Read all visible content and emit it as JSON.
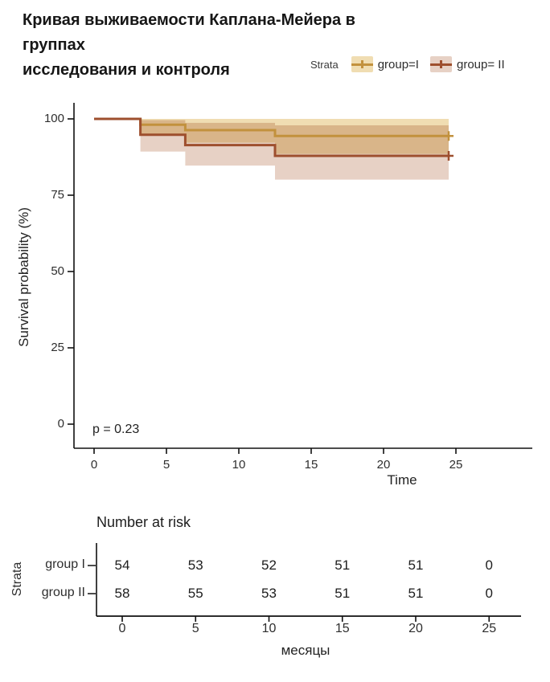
{
  "chart_data": {
    "type": "line",
    "subtype": "kaplan-meier-step-with-confidence-bands",
    "title": "Кривая выживаемости Каплана-Мейера в группах исследования и контроля",
    "title_lines": [
      "Кривая выживаемости Каплана-Мейера в группах",
      "исследования и контроля"
    ],
    "legend_title": "Strata",
    "ylabel": "Survival probability (%)",
    "xlabel": "Time",
    "p_value_label": "p = 0.23",
    "x_ticks": [
      0,
      5,
      10,
      15,
      20,
      25
    ],
    "y_ticks": [
      100,
      75,
      50,
      25,
      0
    ],
    "xlim": [
      0,
      25
    ],
    "ylim": [
      0,
      100
    ],
    "grid": false,
    "legend_position": "top-right",
    "series": [
      {
        "name": "group=I",
        "color": "#c2913d",
        "band_fill": "#f0ddb2",
        "points": [
          [
            0,
            100
          ],
          [
            3.2,
            100
          ],
          [
            3.2,
            98.1
          ],
          [
            6.3,
            98.1
          ],
          [
            6.3,
            96.3
          ],
          [
            12.5,
            96.3
          ],
          [
            12.5,
            94.4
          ],
          [
            24.5,
            94.4
          ]
        ],
        "censors": [
          [
            24.5,
            94.4
          ]
        ],
        "band": [
          [
            3.2,
            6.3,
            94.6,
            100
          ],
          [
            6.3,
            12.5,
            92.2,
            100
          ],
          [
            12.5,
            24.5,
            88.5,
            100
          ]
        ]
      },
      {
        "name": "group= II",
        "color": "#9e4f2e",
        "band_fill": "#e7d1c5",
        "points": [
          [
            0,
            100
          ],
          [
            3.2,
            100
          ],
          [
            3.2,
            94.8
          ],
          [
            6.3,
            94.8
          ],
          [
            6.3,
            91.4
          ],
          [
            12.5,
            91.4
          ],
          [
            12.5,
            87.9
          ],
          [
            24.5,
            87.9
          ]
        ],
        "censors": [
          [
            24.5,
            87.9
          ]
        ],
        "band": [
          [
            3.2,
            6.3,
            89.3,
            99.6
          ],
          [
            6.3,
            12.5,
            84.7,
            98.7
          ],
          [
            12.5,
            24.5,
            80.1,
            97.9
          ]
        ]
      }
    ],
    "risk_table": {
      "title": "Number at risk",
      "axis_label": "Strata",
      "xlabel": "месяцы",
      "times": [
        0,
        5,
        10,
        15,
        20,
        25
      ],
      "rows": [
        {
          "label": "group I",
          "values": [
            54,
            53,
            52,
            51,
            51,
            0
          ]
        },
        {
          "label": "group II",
          "values": [
            58,
            55,
            53,
            51,
            51,
            0
          ]
        }
      ]
    }
  }
}
